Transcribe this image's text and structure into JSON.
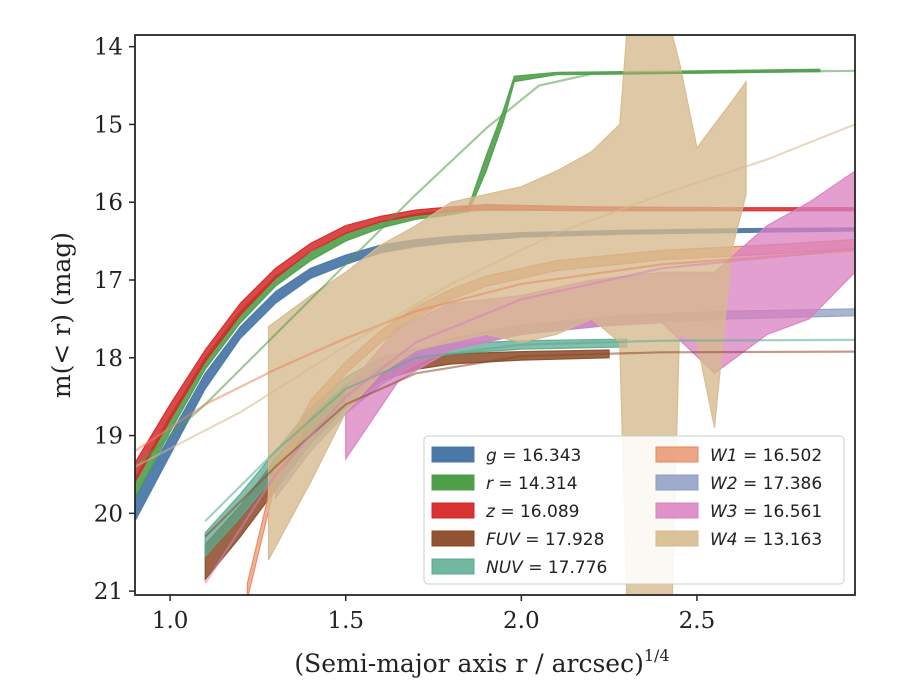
{
  "chart_data": {
    "type": "line",
    "xlabel": "(Semi-major axis r / arcsec)",
    "xlabel_exponent": "1/4",
    "ylabel": "m(< r) (mag)",
    "xlim": [
      0.9,
      2.95
    ],
    "ylim": [
      21.05,
      13.85
    ],
    "y_inverted": true,
    "x_ticks": [
      1.0,
      1.5,
      2.0,
      2.5
    ],
    "x_tick_labels": [
      "1.0",
      "1.5",
      "2.0",
      "2.5"
    ],
    "y_ticks": [
      14,
      15,
      16,
      17,
      18,
      19,
      20,
      21
    ],
    "y_tick_labels": [
      "14",
      "15",
      "16",
      "17",
      "18",
      "19",
      "20",
      "21"
    ],
    "grid": false,
    "legend_position": "lower-right",
    "series": [
      {
        "name": "g",
        "value": "16.343",
        "color": "#4c78a8",
        "opacity": 0.95,
        "band": [
          {
            "x": 0.9,
            "lo": 19.8,
            "hi": 20.1
          },
          {
            "x": 1.0,
            "lo": 19.0,
            "hi": 19.25
          },
          {
            "x": 1.1,
            "lo": 18.2,
            "hi": 18.4
          },
          {
            "x": 1.2,
            "lo": 17.6,
            "hi": 17.75
          },
          {
            "x": 1.3,
            "lo": 17.15,
            "hi": 17.3
          },
          {
            "x": 1.4,
            "lo": 16.85,
            "hi": 16.98
          },
          {
            "x": 1.5,
            "lo": 16.68,
            "hi": 16.8
          },
          {
            "x": 1.6,
            "lo": 16.55,
            "hi": 16.65
          },
          {
            "x": 1.7,
            "lo": 16.48,
            "hi": 16.57
          },
          {
            "x": 1.8,
            "lo": 16.44,
            "hi": 16.52
          },
          {
            "x": 2.0,
            "lo": 16.39,
            "hi": 16.45
          },
          {
            "x": 2.3,
            "lo": 16.36,
            "hi": 16.41
          },
          {
            "x": 2.6,
            "lo": 16.34,
            "hi": 16.39
          },
          {
            "x": 2.95,
            "lo": 16.33,
            "hi": 16.37
          }
        ],
        "fit": []
      },
      {
        "name": "r",
        "value": "14.314",
        "color": "#4e9e4a",
        "opacity": 0.9,
        "band": [
          {
            "x": 0.9,
            "lo": 19.55,
            "hi": 19.8
          },
          {
            "x": 1.0,
            "lo": 18.75,
            "hi": 18.95
          },
          {
            "x": 1.1,
            "lo": 18.0,
            "hi": 18.15
          },
          {
            "x": 1.2,
            "lo": 17.4,
            "hi": 17.55
          },
          {
            "x": 1.3,
            "lo": 16.95,
            "hi": 17.08
          },
          {
            "x": 1.4,
            "lo": 16.65,
            "hi": 16.75
          },
          {
            "x": 1.5,
            "lo": 16.4,
            "hi": 16.5
          },
          {
            "x": 1.6,
            "lo": 16.25,
            "hi": 16.33
          },
          {
            "x": 1.7,
            "lo": 16.15,
            "hi": 16.22
          },
          {
            "x": 1.8,
            "lo": 16.1,
            "hi": 16.16
          },
          {
            "x": 1.85,
            "lo": 16.05,
            "hi": 16.12
          },
          {
            "x": 1.9,
            "lo": 15.4,
            "hi": 15.6
          },
          {
            "x": 1.95,
            "lo": 14.8,
            "hi": 14.95
          },
          {
            "x": 1.98,
            "lo": 14.38,
            "hi": 14.45
          },
          {
            "x": 2.1,
            "lo": 14.33,
            "hi": 14.36
          },
          {
            "x": 2.5,
            "lo": 14.31,
            "hi": 14.34
          },
          {
            "x": 2.85,
            "lo": 14.29,
            "hi": 14.32
          }
        ],
        "fit": [
          {
            "x": 0.9,
            "y": 19.4
          },
          {
            "x": 1.1,
            "y": 18.6
          },
          {
            "x": 1.3,
            "y": 17.7
          },
          {
            "x": 1.5,
            "y": 16.8
          },
          {
            "x": 1.7,
            "y": 15.9
          },
          {
            "x": 1.9,
            "y": 15.05
          },
          {
            "x": 2.05,
            "y": 14.5
          },
          {
            "x": 2.2,
            "y": 14.35
          },
          {
            "x": 2.95,
            "y": 14.31
          }
        ]
      },
      {
        "name": "z",
        "value": "16.089",
        "color": "#d62728",
        "opacity": 0.85,
        "band": [
          {
            "x": 0.9,
            "lo": 19.35,
            "hi": 19.6
          },
          {
            "x": 1.0,
            "lo": 18.6,
            "hi": 18.8
          },
          {
            "x": 1.1,
            "lo": 17.9,
            "hi": 18.05
          },
          {
            "x": 1.2,
            "lo": 17.3,
            "hi": 17.45
          },
          {
            "x": 1.3,
            "lo": 16.85,
            "hi": 16.98
          },
          {
            "x": 1.4,
            "lo": 16.53,
            "hi": 16.63
          },
          {
            "x": 1.5,
            "lo": 16.3,
            "hi": 16.4
          },
          {
            "x": 1.6,
            "lo": 16.18,
            "hi": 16.25
          },
          {
            "x": 1.7,
            "lo": 16.1,
            "hi": 16.17
          },
          {
            "x": 1.8,
            "lo": 16.06,
            "hi": 16.12
          },
          {
            "x": 1.9,
            "lo": 16.03,
            "hi": 16.1
          },
          {
            "x": 2.2,
            "lo": 16.06,
            "hi": 16.11
          },
          {
            "x": 2.6,
            "lo": 16.07,
            "hi": 16.11
          },
          {
            "x": 2.95,
            "lo": 16.07,
            "hi": 16.11
          }
        ],
        "fit": []
      },
      {
        "name": "FUV",
        "value": "17.928",
        "color": "#8b4a26",
        "opacity": 0.85,
        "band": [
          {
            "x": 1.1,
            "lo": 20.4,
            "hi": 20.85
          },
          {
            "x": 1.2,
            "lo": 19.9,
            "hi": 20.3
          },
          {
            "x": 1.3,
            "lo": 19.3,
            "hi": 19.7
          },
          {
            "x": 1.4,
            "lo": 18.75,
            "hi": 19.1
          },
          {
            "x": 1.5,
            "lo": 18.35,
            "hi": 18.65
          },
          {
            "x": 1.6,
            "lo": 18.1,
            "hi": 18.3
          },
          {
            "x": 1.7,
            "lo": 18.0,
            "hi": 18.15
          },
          {
            "x": 1.8,
            "lo": 17.95,
            "hi": 18.08
          },
          {
            "x": 2.0,
            "lo": 17.92,
            "hi": 18.03
          },
          {
            "x": 2.25,
            "lo": 17.9,
            "hi": 18.0
          }
        ],
        "fit": [
          {
            "x": 1.1,
            "y": 20.3
          },
          {
            "x": 1.3,
            "y": 19.4
          },
          {
            "x": 1.5,
            "y": 18.6
          },
          {
            "x": 1.7,
            "y": 18.2
          },
          {
            "x": 2.0,
            "y": 17.98
          },
          {
            "x": 2.4,
            "y": 17.93
          },
          {
            "x": 2.95,
            "y": 17.92
          }
        ]
      },
      {
        "name": "NUV",
        "value": "17.776",
        "color": "#5aaa90",
        "opacity": 0.75,
        "band": [
          {
            "x": 1.1,
            "lo": 20.25,
            "hi": 20.55
          },
          {
            "x": 1.2,
            "lo": 19.75,
            "hi": 20.05
          },
          {
            "x": 1.3,
            "lo": 19.2,
            "hi": 19.5
          },
          {
            "x": 1.4,
            "lo": 18.65,
            "hi": 18.95
          },
          {
            "x": 1.5,
            "lo": 18.25,
            "hi": 18.5
          },
          {
            "x": 1.6,
            "lo": 18.0,
            "hi": 18.2
          },
          {
            "x": 1.7,
            "lo": 17.88,
            "hi": 18.03
          },
          {
            "x": 1.8,
            "lo": 17.82,
            "hi": 17.95
          },
          {
            "x": 2.0,
            "lo": 17.78,
            "hi": 17.89
          },
          {
            "x": 2.3,
            "lo": 17.76,
            "hi": 17.86
          }
        ],
        "fit": [
          {
            "x": 1.1,
            "y": 20.1
          },
          {
            "x": 1.3,
            "y": 19.2
          },
          {
            "x": 1.5,
            "y": 18.4
          },
          {
            "x": 1.7,
            "y": 18.0
          },
          {
            "x": 2.0,
            "y": 17.83
          },
          {
            "x": 2.4,
            "y": 17.78
          },
          {
            "x": 2.95,
            "y": 17.77
          }
        ]
      },
      {
        "name": "W1",
        "value": "16.502",
        "color": "#e8875f",
        "opacity": 0.65,
        "band": [
          {
            "x": 1.22,
            "lo": 20.9,
            "hi": 21.1
          },
          {
            "x": 1.3,
            "lo": 19.4,
            "hi": 19.6
          },
          {
            "x": 1.4,
            "lo": 18.55,
            "hi": 18.75
          },
          {
            "x": 1.5,
            "lo": 18.05,
            "hi": 18.2
          },
          {
            "x": 1.6,
            "lo": 17.65,
            "hi": 17.8
          },
          {
            "x": 1.7,
            "lo": 17.35,
            "hi": 17.48
          },
          {
            "x": 1.8,
            "lo": 17.12,
            "hi": 17.25
          },
          {
            "x": 1.9,
            "lo": 16.95,
            "hi": 17.08
          },
          {
            "x": 2.1,
            "lo": 16.75,
            "hi": 16.88
          },
          {
            "x": 2.4,
            "lo": 16.62,
            "hi": 16.74
          },
          {
            "x": 2.7,
            "lo": 16.55,
            "hi": 16.67
          },
          {
            "x": 2.95,
            "lo": 16.48,
            "hi": 16.6
          }
        ],
        "fit": [
          {
            "x": 0.9,
            "y": 19.2
          },
          {
            "x": 1.1,
            "y": 18.6
          },
          {
            "x": 1.3,
            "y": 18.15
          },
          {
            "x": 1.5,
            "y": 17.75
          },
          {
            "x": 1.7,
            "y": 17.4
          },
          {
            "x": 2.0,
            "y": 17.05
          },
          {
            "x": 2.4,
            "y": 16.8
          },
          {
            "x": 2.95,
            "y": 16.62
          }
        ]
      },
      {
        "name": "W2",
        "value": "17.386",
        "color": "#8d9cc4",
        "opacity": 0.75,
        "band": [
          {
            "x": 1.3,
            "lo": 19.6,
            "hi": 19.8
          },
          {
            "x": 1.4,
            "lo": 19.0,
            "hi": 19.2
          },
          {
            "x": 1.5,
            "lo": 18.55,
            "hi": 18.72
          },
          {
            "x": 1.6,
            "lo": 18.2,
            "hi": 18.35
          },
          {
            "x": 1.7,
            "lo": 17.95,
            "hi": 18.08
          },
          {
            "x": 1.8,
            "lo": 17.75,
            "hi": 17.88
          },
          {
            "x": 2.0,
            "lo": 17.58,
            "hi": 17.7
          },
          {
            "x": 2.3,
            "lo": 17.45,
            "hi": 17.56
          },
          {
            "x": 2.6,
            "lo": 17.4,
            "hi": 17.5
          },
          {
            "x": 2.95,
            "lo": 17.37,
            "hi": 17.46
          }
        ],
        "fit": []
      },
      {
        "name": "W3",
        "value": "16.561",
        "color": "#d97fc0",
        "opacity": 0.75,
        "band": [
          {
            "x": 1.5,
            "lo": 18.4,
            "hi": 19.3
          },
          {
            "x": 1.65,
            "lo": 17.6,
            "hi": 18.3
          },
          {
            "x": 1.8,
            "lo": 17.3,
            "hi": 17.9
          },
          {
            "x": 2.0,
            "lo": 17.2,
            "hi": 17.7
          },
          {
            "x": 2.2,
            "lo": 17.0,
            "hi": 17.6
          },
          {
            "x": 2.4,
            "lo": 16.9,
            "hi": 17.55
          },
          {
            "x": 2.55,
            "lo": 16.9,
            "hi": 18.2
          },
          {
            "x": 2.7,
            "lo": 16.3,
            "hi": 17.7
          },
          {
            "x": 2.82,
            "lo": 16.0,
            "hi": 17.5
          },
          {
            "x": 2.95,
            "lo": 15.6,
            "hi": 16.9
          }
        ],
        "fit": [
          {
            "x": 1.1,
            "y": 20.9
          },
          {
            "x": 1.3,
            "y": 19.5
          },
          {
            "x": 1.5,
            "y": 18.5
          },
          {
            "x": 1.7,
            "y": 17.8
          },
          {
            "x": 2.0,
            "y": 17.25
          },
          {
            "x": 2.4,
            "y": 16.85
          },
          {
            "x": 2.95,
            "y": 16.6
          }
        ]
      },
      {
        "name": "W4",
        "value": "13.163",
        "color": "#d6b98c",
        "opacity": 0.78,
        "band": [
          {
            "x": 1.28,
            "lo": 17.6,
            "hi": 20.6
          },
          {
            "x": 1.4,
            "lo": 17.2,
            "hi": 19.6
          },
          {
            "x": 1.5,
            "lo": 16.9,
            "hi": 18.7
          },
          {
            "x": 1.6,
            "lo": 16.55,
            "hi": 18.2
          },
          {
            "x": 1.7,
            "lo": 16.3,
            "hi": 17.9
          },
          {
            "x": 1.8,
            "lo": 16.0,
            "hi": 17.8
          },
          {
            "x": 1.9,
            "lo": 15.9,
            "hi": 17.7
          },
          {
            "x": 2.0,
            "lo": 15.8,
            "hi": 17.8
          },
          {
            "x": 2.1,
            "lo": 15.6,
            "hi": 17.7
          },
          {
            "x": 2.2,
            "lo": 15.35,
            "hi": 17.5
          },
          {
            "x": 2.28,
            "lo": 15.0,
            "hi": 17.8
          },
          {
            "x": 2.3,
            "lo": 13.85,
            "hi": 21.05
          },
          {
            "x": 2.43,
            "lo": 13.85,
            "hi": 21.05
          },
          {
            "x": 2.45,
            "lo": 14.2,
            "hi": 17.7
          },
          {
            "x": 2.5,
            "lo": 15.3,
            "hi": 17.8
          },
          {
            "x": 2.55,
            "lo": 15.0,
            "hi": 18.9
          },
          {
            "x": 2.6,
            "lo": 14.7,
            "hi": 16.6
          },
          {
            "x": 2.64,
            "lo": 14.45,
            "hi": 15.9
          }
        ],
        "fit": [
          {
            "x": 0.9,
            "y": 19.4
          },
          {
            "x": 1.2,
            "y": 18.7
          },
          {
            "x": 1.5,
            "y": 17.85
          },
          {
            "x": 1.8,
            "y": 17.05
          },
          {
            "x": 2.1,
            "y": 16.4
          },
          {
            "x": 2.4,
            "y": 15.9
          },
          {
            "x": 2.7,
            "y": 15.45
          },
          {
            "x": 2.95,
            "y": 15.0
          }
        ]
      }
    ]
  }
}
